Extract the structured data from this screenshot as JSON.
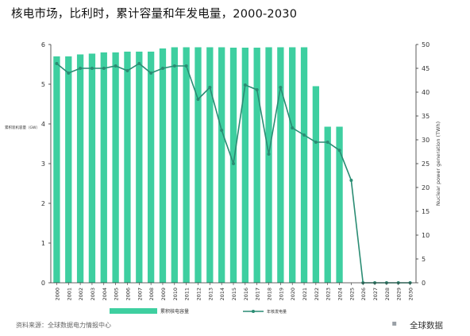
{
  "title": "核电市场，比利时，累计容量和年发电量，2000-2030",
  "source": "资料来源：全球数据电力情报中心",
  "brand": "全球数据",
  "brand_icon": "globaldata-logo-icon",
  "colors": {
    "bar": "#3ecfa0",
    "line": "#2a8c73",
    "axis": "#333333"
  },
  "chart_data": {
    "type": "bar",
    "categories": [
      "2000",
      "2001",
      "2002",
      "2003",
      "2004",
      "2005",
      "2006",
      "2007",
      "2008",
      "2009",
      "2010",
      "2011",
      "2012",
      "2013",
      "2014",
      "2015",
      "2016",
      "2017",
      "2018",
      "2019",
      "2020",
      "2021",
      "2022",
      "2023",
      "2024",
      "2025",
      "2026",
      "2027",
      "2028",
      "2029",
      "2030"
    ],
    "series": [
      {
        "name": "累积核电容量",
        "type": "bar",
        "axis": "left",
        "values": [
          5.7,
          5.7,
          5.75,
          5.77,
          5.8,
          5.8,
          5.82,
          5.82,
          5.82,
          5.9,
          5.93,
          5.93,
          5.93,
          5.93,
          5.93,
          5.92,
          5.92,
          5.92,
          5.93,
          5.93,
          5.93,
          5.93,
          4.95,
          3.93,
          3.93,
          null,
          null,
          null,
          null,
          null,
          null
        ]
      },
      {
        "name": "年核发电量",
        "type": "line",
        "axis": "right",
        "values": [
          46,
          44,
          45,
          45,
          45,
          45.5,
          44.5,
          46,
          44,
          45,
          45.5,
          45.5,
          38.5,
          41,
          32,
          25,
          41.5,
          40.5,
          27,
          41,
          32.5,
          31,
          29.5,
          29.5,
          27.8,
          21.5,
          0,
          0,
          0,
          0,
          0
        ]
      }
    ],
    "ylim_left": [
      0,
      6
    ],
    "yticks_left": [
      "0",
      "1",
      "2",
      "3",
      "4",
      "5",
      "6"
    ],
    "ylabel_left": "累积装机容量（GW）",
    "ylim_right": [
      0,
      50
    ],
    "yticks_right": [
      "0",
      "5",
      "10",
      "15",
      "20",
      "25",
      "30",
      "35",
      "40",
      "45",
      "50"
    ],
    "ylabel_right": "Nuclear power generation (TWh)",
    "grid": false,
    "legend_position": "bottom",
    "legend": [
      "累积核电容量",
      "年核发电量"
    ]
  }
}
